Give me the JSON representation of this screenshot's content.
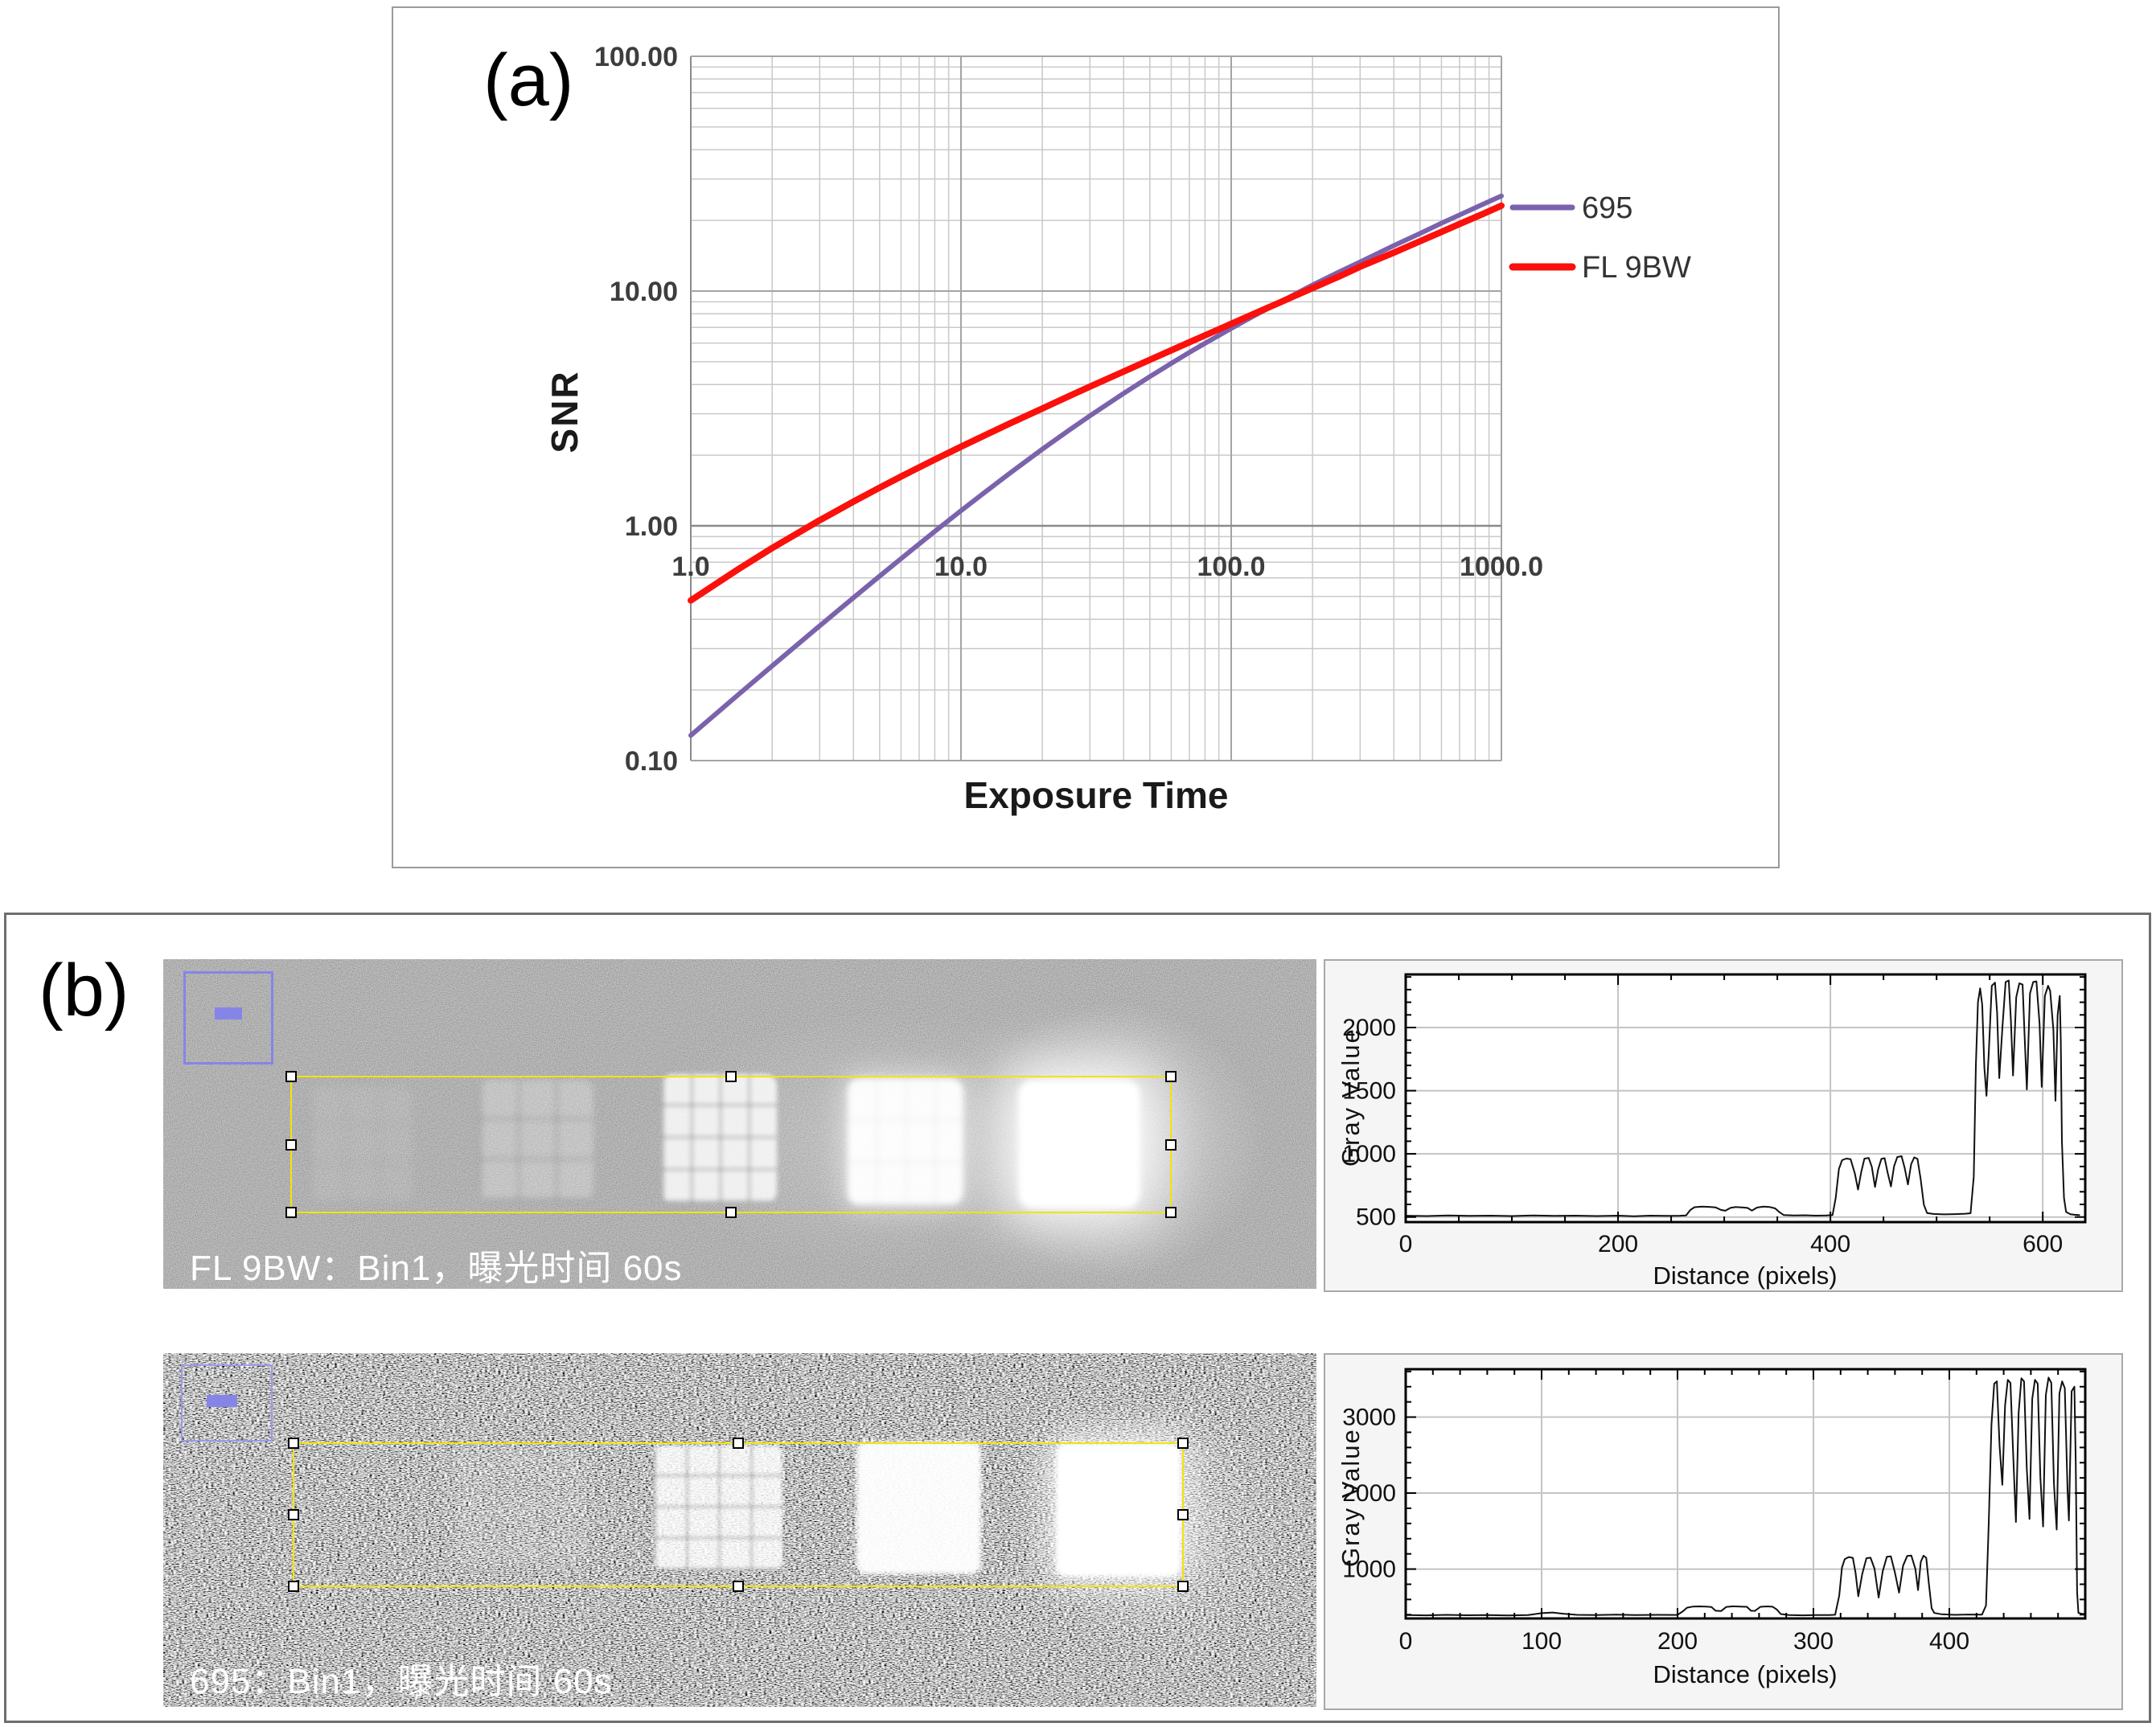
{
  "figure": {
    "panel_a_label": "(a)",
    "panel_b_label": "(b)"
  },
  "panel_b": {
    "row1_caption": "FL 9BW：Bin1，曝光时间 60s",
    "row2_caption": "695：Bin1，曝光时间 60s"
  },
  "colors": {
    "series_695": "#7b62ac",
    "series_fl9bw": "#fb100c",
    "roi_yellow": "#f2e40c",
    "selection_blue": "#8585e8",
    "profile_line": "#111111",
    "caption_text": "#ffffff"
  },
  "chart_data": [
    {
      "id": "snr_vs_exposure",
      "type": "line",
      "title": "",
      "xlabel": "Exposure Time",
      "ylabel": "SNR",
      "xscale": "log",
      "yscale": "log",
      "xlim": [
        1,
        1000
      ],
      "ylim": [
        0.1,
        100
      ],
      "x_tick_values": [
        1,
        10,
        100,
        1000
      ],
      "x_tick_labels": [
        "1.0",
        "10.0",
        "100.0",
        "1000.0"
      ],
      "y_tick_values": [
        100,
        10,
        1,
        0.1
      ],
      "y_tick_labels": [
        "100.00",
        "10.00",
        "1.00",
        "0.10"
      ],
      "grid": "log-minor",
      "legend_position": "right",
      "series": [
        {
          "name": "695",
          "color": "#7b62ac",
          "width": 6,
          "points": [
            [
              1,
              0.128
            ],
            [
              1.5,
              0.191
            ],
            [
              2,
              0.253
            ],
            [
              3,
              0.375
            ],
            [
              4,
              0.494
            ],
            [
              5,
              0.611
            ],
            [
              6,
              0.725
            ],
            [
              7,
              0.837
            ],
            [
              8,
              0.947
            ],
            [
              10,
              1.16
            ],
            [
              12,
              1.364
            ],
            [
              15,
              1.66
            ],
            [
              20,
              2.12
            ],
            [
              25,
              2.543
            ],
            [
              30,
              2.94
            ],
            [
              40,
              3.667
            ],
            [
              50,
              4.32
            ],
            [
              60,
              4.92
            ],
            [
              70,
              5.48
            ],
            [
              80,
              5.989
            ],
            [
              100,
              6.93
            ],
            [
              120,
              7.78
            ],
            [
              150,
              8.92
            ],
            [
              170,
              9.62
            ],
            [
              200,
              10.6
            ],
            [
              250,
              12.04
            ],
            [
              300,
              13.3
            ],
            [
              400,
              15.63
            ],
            [
              500,
              17.6
            ],
            [
              600,
              19.45
            ],
            [
              700,
              21.1
            ],
            [
              850,
              23.36
            ],
            [
              1000,
              25.4
            ]
          ]
        },
        {
          "name": "FL 9BW",
          "color": "#fb100c",
          "width": 8,
          "points": [
            [
              1,
              0.481
            ],
            [
              1.5,
              0.654
            ],
            [
              2,
              0.804
            ],
            [
              3,
              1.056
            ],
            [
              4,
              1.268
            ],
            [
              5,
              1.454
            ],
            [
              6,
              1.621
            ],
            [
              7,
              1.774
            ],
            [
              8,
              1.915
            ],
            [
              10,
              2.172
            ],
            [
              12,
              2.402
            ],
            [
              15,
              2.713
            ],
            [
              20,
              3.16
            ],
            [
              25,
              3.559
            ],
            [
              30,
              3.916
            ],
            [
              40,
              4.543
            ],
            [
              50,
              5.096
            ],
            [
              60,
              5.593
            ],
            [
              70,
              6.05
            ],
            [
              80,
              6.477
            ],
            [
              100,
              7.25
            ],
            [
              120,
              7.953
            ],
            [
              150,
              8.9
            ],
            [
              170,
              9.482
            ],
            [
              200,
              10.3
            ],
            [
              250,
              11.512
            ],
            [
              300,
              12.7
            ],
            [
              400,
              14.578
            ],
            [
              500,
              16.3
            ],
            [
              600,
              17.863
            ],
            [
              700,
              19.3
            ],
            [
              850,
              21.26
            ],
            [
              1000,
              23.1
            ]
          ]
        }
      ]
    },
    {
      "id": "profile_fl9bw",
      "type": "line",
      "xlabel": "Distance (pixels)",
      "ylabel": "Gray Value",
      "xlim": [
        0,
        640
      ],
      "ylim": [
        460,
        2420
      ],
      "x_major_ticks": [
        0,
        200,
        400,
        600
      ],
      "x_minor_step": 50,
      "y_major_ticks": [
        500,
        1000,
        1500,
        2000
      ],
      "y_minor_step": 100,
      "grid": true,
      "line_color": "#111111",
      "points": [
        [
          0,
          510
        ],
        [
          20,
          508
        ],
        [
          40,
          512
        ],
        [
          60,
          509
        ],
        [
          80,
          511
        ],
        [
          100,
          508
        ],
        [
          120,
          512
        ],
        [
          140,
          509
        ],
        [
          160,
          511
        ],
        [
          180,
          508
        ],
        [
          200,
          511
        ],
        [
          215,
          506
        ],
        [
          230,
          511
        ],
        [
          245,
          509
        ],
        [
          258,
          510
        ],
        [
          264,
          512
        ],
        [
          268,
          555
        ],
        [
          272,
          578
        ],
        [
          279,
          583
        ],
        [
          286,
          580
        ],
        [
          292,
          576
        ],
        [
          297,
          556
        ],
        [
          301,
          550
        ],
        [
          306,
          573
        ],
        [
          311,
          579
        ],
        [
          317,
          576
        ],
        [
          322,
          572
        ],
        [
          326,
          551
        ],
        [
          331,
          575
        ],
        [
          337,
          582
        ],
        [
          343,
          579
        ],
        [
          348,
          568
        ],
        [
          352,
          538
        ],
        [
          356,
          516
        ],
        [
          366,
          512
        ],
        [
          376,
          514
        ],
        [
          386,
          511
        ],
        [
          396,
          513
        ],
        [
          402,
          516
        ],
        [
          405,
          650
        ],
        [
          408,
          880
        ],
        [
          411,
          950
        ],
        [
          415,
          963
        ],
        [
          419,
          958
        ],
        [
          423,
          845
        ],
        [
          426,
          718
        ],
        [
          429,
          855
        ],
        [
          432,
          962
        ],
        [
          436,
          968
        ],
        [
          439,
          898
        ],
        [
          442,
          738
        ],
        [
          445,
          878
        ],
        [
          448,
          960
        ],
        [
          451,
          966
        ],
        [
          454,
          848
        ],
        [
          457,
          742
        ],
        [
          460,
          902
        ],
        [
          463,
          975
        ],
        [
          467,
          982
        ],
        [
          470,
          888
        ],
        [
          473,
          758
        ],
        [
          476,
          918
        ],
        [
          479,
          972
        ],
        [
          482,
          960
        ],
        [
          485,
          798
        ],
        [
          488,
          598
        ],
        [
          491,
          532
        ],
        [
          497,
          524
        ],
        [
          507,
          521
        ],
        [
          517,
          523
        ],
        [
          527,
          526
        ],
        [
          532,
          530
        ],
        [
          535,
          820
        ],
        [
          537,
          1700
        ],
        [
          539,
          2200
        ],
        [
          541,
          2310
        ],
        [
          543,
          2180
        ],
        [
          545,
          1680
        ],
        [
          547,
          1460
        ],
        [
          549,
          1780
        ],
        [
          552,
          2330
        ],
        [
          555,
          2355
        ],
        [
          557,
          2120
        ],
        [
          559,
          1600
        ],
        [
          562,
          2000
        ],
        [
          565,
          2360
        ],
        [
          568,
          2372
        ],
        [
          570,
          2050
        ],
        [
          572,
          1620
        ],
        [
          575,
          2240
        ],
        [
          578,
          2350
        ],
        [
          581,
          2340
        ],
        [
          583,
          1920
        ],
        [
          585,
          1510
        ],
        [
          588,
          2270
        ],
        [
          591,
          2360
        ],
        [
          594,
          2365
        ],
        [
          597,
          2030
        ],
        [
          599,
          1530
        ],
        [
          602,
          2250
        ],
        [
          605,
          2330
        ],
        [
          607,
          2290
        ],
        [
          610,
          1980
        ],
        [
          612,
          1420
        ],
        [
          614,
          2100
        ],
        [
          616,
          2250
        ],
        [
          617,
          1900
        ],
        [
          618,
          1100
        ],
        [
          620,
          650
        ],
        [
          622,
          540
        ],
        [
          626,
          522
        ],
        [
          630,
          518
        ],
        [
          635,
          515
        ]
      ]
    },
    {
      "id": "profile_695",
      "type": "line",
      "xlabel": "Distance (pixels)",
      "ylabel": "Gray Value",
      "xlim": [
        0,
        500
      ],
      "ylim": [
        350,
        3630
      ],
      "x_major_ticks": [
        0,
        100,
        200,
        300,
        400
      ],
      "x_minor_step": 20,
      "y_major_ticks": [
        1000,
        2000,
        3000
      ],
      "y_minor_step": 200,
      "grid": true,
      "line_color": "#111111",
      "points": [
        [
          0,
          396
        ],
        [
          15,
          391
        ],
        [
          30,
          398
        ],
        [
          45,
          392
        ],
        [
          60,
          396
        ],
        [
          75,
          390
        ],
        [
          90,
          394
        ],
        [
          100,
          420
        ],
        [
          108,
          428
        ],
        [
          116,
          412
        ],
        [
          126,
          398
        ],
        [
          140,
          395
        ],
        [
          155,
          400
        ],
        [
          170,
          394
        ],
        [
          185,
          398
        ],
        [
          200,
          397
        ],
        [
          204,
          445
        ],
        [
          207,
          492
        ],
        [
          211,
          506
        ],
        [
          216,
          509
        ],
        [
          221,
          506
        ],
        [
          225,
          500
        ],
        [
          228,
          452
        ],
        [
          232,
          447
        ],
        [
          236,
          502
        ],
        [
          241,
          510
        ],
        [
          246,
          507
        ],
        [
          251,
          503
        ],
        [
          254,
          452
        ],
        [
          257,
          449
        ],
        [
          261,
          503
        ],
        [
          266,
          509
        ],
        [
          270,
          504
        ],
        [
          273,
          468
        ],
        [
          276,
          408
        ],
        [
          282,
          394
        ],
        [
          292,
          391
        ],
        [
          302,
          396
        ],
        [
          312,
          394
        ],
        [
          316,
          399
        ],
        [
          319,
          650
        ],
        [
          321,
          1020
        ],
        [
          323,
          1130
        ],
        [
          326,
          1158
        ],
        [
          329,
          1148
        ],
        [
          331,
          950
        ],
        [
          333,
          642
        ],
        [
          336,
          940
        ],
        [
          339,
          1142
        ],
        [
          342,
          1150
        ],
        [
          345,
          1005
        ],
        [
          348,
          625
        ],
        [
          351,
          972
        ],
        [
          354,
          1162
        ],
        [
          357,
          1168
        ],
        [
          360,
          952
        ],
        [
          363,
          690
        ],
        [
          366,
          1045
        ],
        [
          369,
          1172
        ],
        [
          372,
          1178
        ],
        [
          375,
          1002
        ],
        [
          377,
          724
        ],
        [
          379,
          1095
        ],
        [
          381,
          1176
        ],
        [
          383,
          1148
        ],
        [
          385,
          805
        ],
        [
          387,
          485
        ],
        [
          389,
          422
        ],
        [
          394,
          406
        ],
        [
          404,
          398
        ],
        [
          414,
          402
        ],
        [
          424,
          400
        ],
        [
          427,
          520
        ],
        [
          429,
          1600
        ],
        [
          431,
          2900
        ],
        [
          433,
          3440
        ],
        [
          435,
          3470
        ],
        [
          437,
          2620
        ],
        [
          439,
          2110
        ],
        [
          441,
          3150
        ],
        [
          443,
          3490
        ],
        [
          445,
          3450
        ],
        [
          447,
          2510
        ],
        [
          449,
          1620
        ],
        [
          451,
          3060
        ],
        [
          453,
          3510
        ],
        [
          455,
          3470
        ],
        [
          457,
          2330
        ],
        [
          459,
          1660
        ],
        [
          461,
          3240
        ],
        [
          463,
          3490
        ],
        [
          465,
          3440
        ],
        [
          467,
          2210
        ],
        [
          469,
          1560
        ],
        [
          471,
          3290
        ],
        [
          473,
          3520
        ],
        [
          475,
          3450
        ],
        [
          477,
          2120
        ],
        [
          479,
          1520
        ],
        [
          481,
          3310
        ],
        [
          483,
          3470
        ],
        [
          485,
          3380
        ],
        [
          487,
          2040
        ],
        [
          488,
          1640
        ],
        [
          490,
          3340
        ],
        [
          492,
          3400
        ],
        [
          493,
          2400
        ],
        [
          494,
          700
        ],
        [
          495,
          424
        ],
        [
          497,
          412
        ],
        [
          500,
          408
        ]
      ]
    }
  ]
}
